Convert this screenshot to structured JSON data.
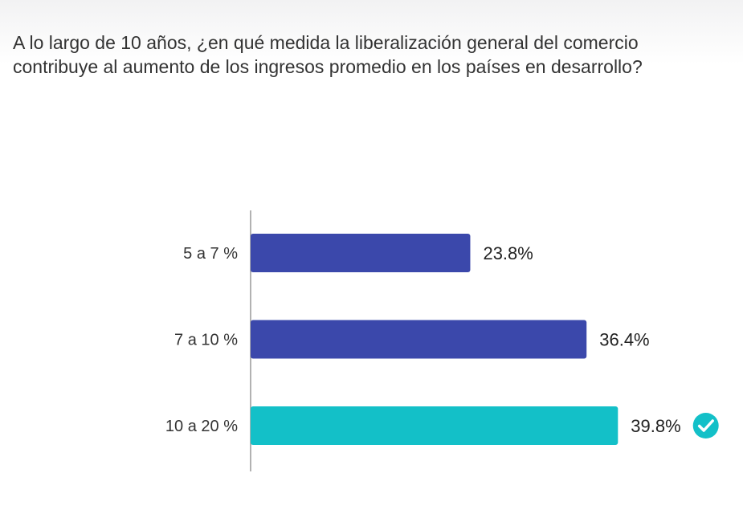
{
  "question": "A lo largo de 10 años, ¿en qué medida la liberalización general del comercio contribuye al aumento de los ingresos promedio en los países en desarrollo?",
  "colors": {
    "bar_default": "#3b48ab",
    "bar_correct": "#13c0c8",
    "axis": "#999999",
    "check": "#13c0c8"
  },
  "icons": {
    "correct": "check-circle-icon"
  },
  "chart_data": {
    "type": "bar",
    "orientation": "horizontal",
    "categories": [
      "5 a 7 %",
      "7 a 10 %",
      "10 a 20 %"
    ],
    "values": [
      23.8,
      36.4,
      39.8
    ],
    "value_labels": [
      "23.8%",
      "36.4%",
      "39.8%"
    ],
    "correct": [
      false,
      false,
      true
    ],
    "xlim": [
      0,
      51
    ],
    "grid": false
  }
}
